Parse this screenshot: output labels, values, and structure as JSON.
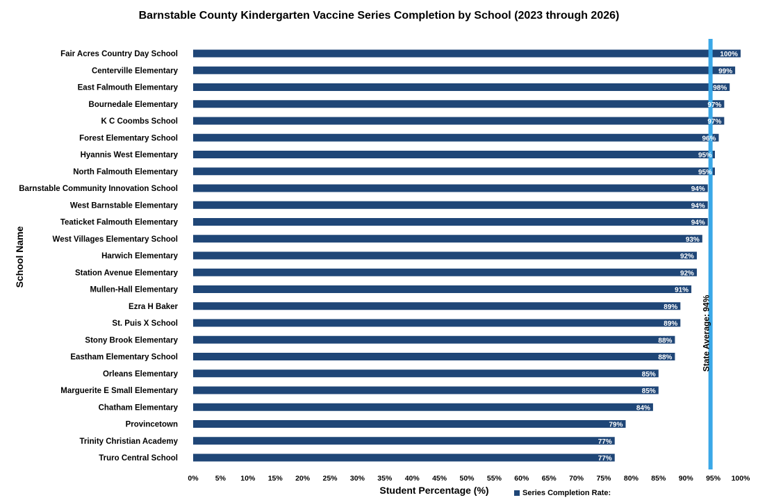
{
  "chart_data": {
    "type": "bar",
    "orientation": "horizontal",
    "title": "Barnstable County Kindergarten Vaccine Series Completion by School (2023 through 2026)",
    "xlabel": "Student Percentage (%)",
    "ylabel": "School Name",
    "xlim": [
      0,
      100
    ],
    "x_ticks": [
      "0%",
      "5%",
      "10%",
      "15%",
      "20%",
      "25%",
      "30%",
      "35%",
      "40%",
      "45%",
      "50%",
      "55%",
      "60%",
      "65%",
      "70%",
      "75%",
      "80%",
      "85%",
      "90%",
      "95%",
      "100%"
    ],
    "categories": [
      "Fair Acres Country Day School",
      "Centerville Elementary",
      "East Falmouth Elementary",
      "Bournedale Elementary",
      "K C Coombs School",
      "Forest Elementary School",
      "Hyannis West Elementary",
      "North Falmouth Elementary",
      "Barnstable Community Innovation School",
      "West Barnstable Elementary",
      "Teaticket Falmouth Elementary",
      "West Villages Elementary School",
      "Harwich Elementary",
      "Station Avenue Elementary",
      "Mullen-Hall Elementary",
      "Ezra H Baker",
      "St. Puis X School",
      "Stony Brook Elementary",
      "Eastham Elementary School",
      "Orleans Elementary",
      "Marguerite E Small Elementary",
      "Chatham Elementary",
      "Provincetown",
      "Trinity Christian Academy",
      "Truro Central School"
    ],
    "series": [
      {
        "name": "Series Completion Rate:",
        "color": "#1f4677",
        "values": [
          100,
          99,
          98,
          97,
          97,
          96,
          95.3,
          95.3,
          94,
          94,
          94,
          93,
          92,
          92,
          91,
          89,
          89,
          88,
          88,
          85,
          85,
          84,
          79,
          77,
          77
        ],
        "labels": [
          "100%",
          "99%",
          "98%",
          "97%",
          "97%",
          "96%",
          "95%",
          "95%",
          "94%",
          "94%",
          "94%",
          "93%",
          "92%",
          "92%",
          "91%",
          "89%",
          "89%",
          "88%",
          "88%",
          "85%",
          "85%",
          "84%",
          "79%",
          "77%",
          "77%"
        ]
      }
    ],
    "reference_line": {
      "value": 94.5,
      "label": "State Average: 94%",
      "color": "#3aa8e8"
    },
    "grid": false,
    "legend": "bottom"
  }
}
